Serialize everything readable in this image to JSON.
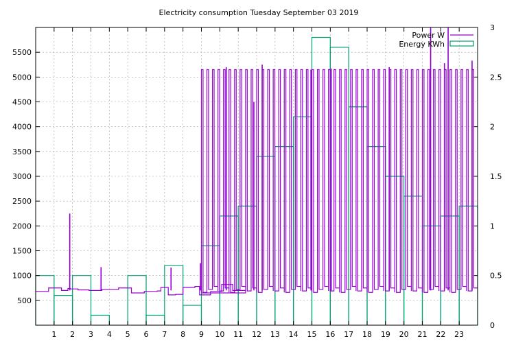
{
  "chart_data": {
    "type": "line",
    "title": "Electricity consumption Tuesday September 03 2019",
    "xlabel": "",
    "ylabel": "",
    "xlim": [
      0,
      24
    ],
    "ylim": [
      0,
      6000
    ],
    "y2lim": [
      0,
      3
    ],
    "grid": true,
    "legend_position": "top-right",
    "x_ticks": [
      1,
      2,
      3,
      4,
      5,
      6,
      7,
      8,
      9,
      10,
      11,
      12,
      13,
      14,
      15,
      16,
      17,
      18,
      19,
      20,
      21,
      22,
      23
    ],
    "y_ticks": [
      500,
      1000,
      1500,
      2000,
      2500,
      3000,
      3500,
      4000,
      4500,
      5000,
      5500
    ],
    "y2_ticks": [
      0,
      0.5,
      1,
      1.5,
      2,
      2.5,
      3
    ],
    "series": [
      {
        "name": "Power W",
        "axis": "y",
        "color": "#9400d3",
        "base_x": [
          0,
          0.7,
          1.4,
          1.75,
          1.88,
          2.3,
          2.9,
          3.6,
          3.9,
          4.5,
          5.2,
          5.9,
          6.6,
          6.8,
          7.2,
          7.6,
          8.0,
          8.65,
          8.9,
          9.5,
          10.1,
          10.7,
          11.4
        ],
        "base_y": [
          680,
          750,
          700,
          740,
          730,
          710,
          700,
          720,
          720,
          750,
          650,
          680,
          690,
          760,
          610,
          620,
          760,
          780,
          610,
          680,
          820,
          700,
          650
        ],
        "spikes": [
          {
            "x": 1.85,
            "y": 2250
          },
          {
            "x": 3.55,
            "y": 1170
          },
          {
            "x": 7.35,
            "y": 1160
          },
          {
            "x": 8.95,
            "y": 1250
          },
          {
            "x": 10.35,
            "y": 5200
          },
          {
            "x": 11.85,
            "y": 4500
          },
          {
            "x": 12.3,
            "y": 5250
          },
          {
            "x": 14.95,
            "y": 5150
          },
          {
            "x": 16.05,
            "y": 5170
          },
          {
            "x": 19.2,
            "y": 5200
          },
          {
            "x": 21.45,
            "y": 6000
          },
          {
            "x": 22.2,
            "y": 5280
          },
          {
            "x": 22.4,
            "y": 6000
          },
          {
            "x": 23.7,
            "y": 5330
          }
        ],
        "cycle_start": 9.0,
        "cycle_end": 24.0,
        "cycle_period": 0.3,
        "cycle_on_value": 5150,
        "cycle_off_value": 720
      },
      {
        "name": "Energy KWh",
        "axis": "y2",
        "color": "#009e73",
        "x": [
          0,
          1,
          2,
          3,
          4,
          5,
          6,
          7,
          8,
          9,
          10,
          11,
          12,
          13,
          14,
          15,
          16,
          17,
          18,
          19,
          20,
          21,
          22,
          23
        ],
        "values": [
          0.5,
          0.3,
          0.5,
          0.1,
          0.0,
          0.5,
          0.1,
          0.6,
          0.2,
          0.8,
          1.1,
          1.2,
          1.7,
          1.8,
          2.1,
          2.9,
          2.8,
          2.2,
          1.8,
          1.5,
          1.3,
          1.0,
          1.1,
          1.2
        ]
      }
    ]
  }
}
